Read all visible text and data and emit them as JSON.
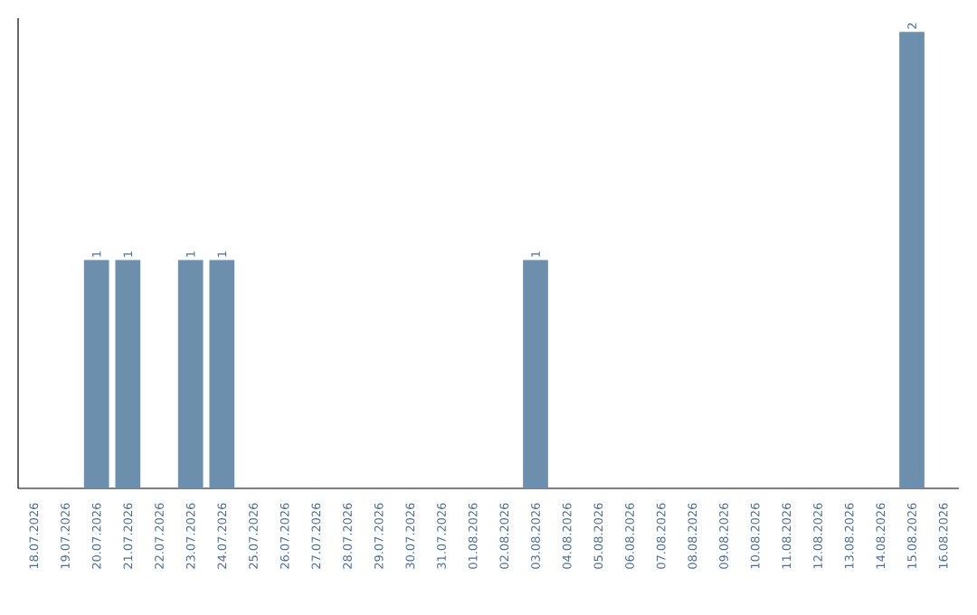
{
  "chart_data": {
    "type": "bar",
    "categories": [
      "18.07.2026",
      "19.07.2026",
      "20.07.2026",
      "21.07.2026",
      "22.07.2026",
      "23.07.2026",
      "24.07.2026",
      "25.07.2026",
      "26.07.2026",
      "27.07.2026",
      "28.07.2026",
      "29.07.2026",
      "30.07.2026",
      "31.07.2026",
      "01.08.2026",
      "02.08.2026",
      "03.08.2026",
      "04.08.2026",
      "05.08.2026",
      "06.08.2026",
      "07.08.2026",
      "08.08.2026",
      "09.08.2026",
      "10.08.2026",
      "11.08.2026",
      "12.08.2026",
      "13.08.2026",
      "14.08.2026",
      "15.08.2026",
      "16.08.2026"
    ],
    "values": [
      0,
      0,
      1,
      1,
      0,
      1,
      1,
      0,
      0,
      0,
      0,
      0,
      0,
      0,
      0,
      0,
      1,
      0,
      0,
      0,
      0,
      0,
      0,
      0,
      0,
      0,
      0,
      0,
      2,
      0
    ],
    "value_labels": [
      null,
      null,
      "1",
      "1",
      null,
      "1",
      "1",
      null,
      null,
      null,
      null,
      null,
      null,
      null,
      null,
      null,
      "1",
      null,
      null,
      null,
      null,
      null,
      null,
      null,
      null,
      null,
      null,
      null,
      "2",
      null
    ],
    "color": "#6d8fae",
    "tick_labels": "x",
    "grid": false
  }
}
